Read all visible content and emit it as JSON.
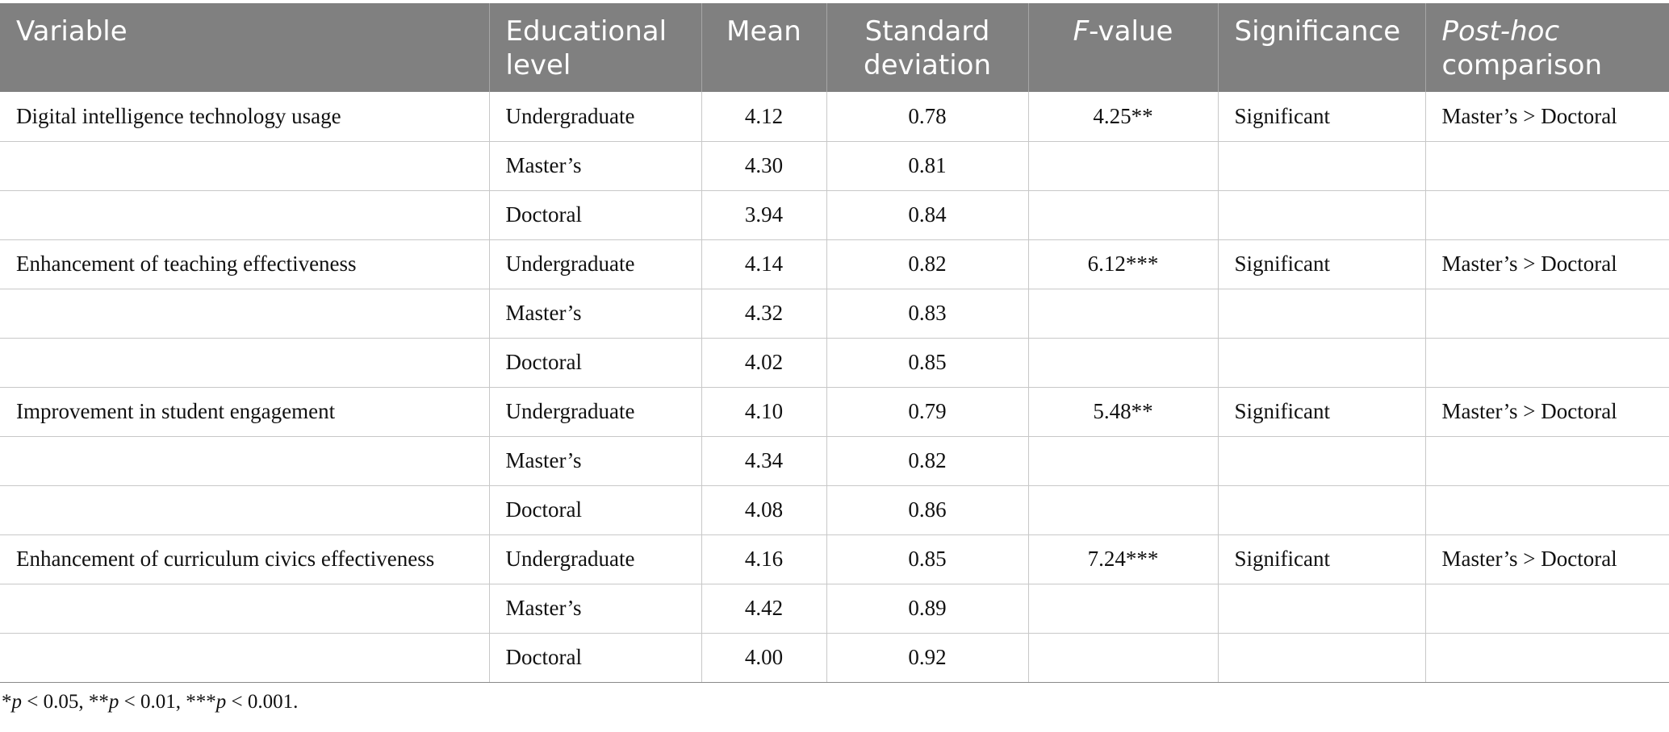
{
  "table": {
    "headers": {
      "variable": "Variable",
      "educational_level": "Educational level",
      "mean": "Mean",
      "standard_deviation": "Standard deviation",
      "f_value_italic": "F",
      "f_value_rest": "-value",
      "significance": "Significance",
      "post_hoc_italic": "Post-hoc",
      "post_hoc_rest": "comparison"
    },
    "rows": [
      {
        "variable": "Digital intelligence technology usage",
        "level": "Undergraduate",
        "mean": "4.12",
        "sd": "0.78",
        "f": "4.25**",
        "significance": "Significant",
        "posthoc": "Master’s > Doctoral"
      },
      {
        "variable": "",
        "level": "Master’s",
        "mean": "4.30",
        "sd": "0.81",
        "f": "",
        "significance": "",
        "posthoc": ""
      },
      {
        "variable": "",
        "level": "Doctoral",
        "mean": "3.94",
        "sd": "0.84",
        "f": "",
        "significance": "",
        "posthoc": ""
      },
      {
        "variable": "Enhancement of teaching effectiveness",
        "level": "Undergraduate",
        "mean": "4.14",
        "sd": "0.82",
        "f": "6.12***",
        "significance": "Significant",
        "posthoc": "Master’s > Doctoral"
      },
      {
        "variable": "",
        "level": "Master’s",
        "mean": "4.32",
        "sd": "0.83",
        "f": "",
        "significance": "",
        "posthoc": ""
      },
      {
        "variable": "",
        "level": "Doctoral",
        "mean": "4.02",
        "sd": "0.85",
        "f": "",
        "significance": "",
        "posthoc": ""
      },
      {
        "variable": "Improvement in student engagement",
        "level": "Undergraduate",
        "mean": "4.10",
        "sd": "0.79",
        "f": "5.48**",
        "significance": "Significant",
        "posthoc": "Master’s > Doctoral"
      },
      {
        "variable": "",
        "level": "Master’s",
        "mean": "4.34",
        "sd": "0.82",
        "f": "",
        "significance": "",
        "posthoc": ""
      },
      {
        "variable": "",
        "level": "Doctoral",
        "mean": "4.08",
        "sd": "0.86",
        "f": "",
        "significance": "",
        "posthoc": ""
      },
      {
        "variable": "Enhancement of curriculum civics effectiveness",
        "level": "Undergraduate",
        "mean": "4.16",
        "sd": "0.85",
        "f": "7.24***",
        "significance": "Significant",
        "posthoc": "Master’s > Doctoral"
      },
      {
        "variable": "",
        "level": "Master’s",
        "mean": "4.42",
        "sd": "0.89",
        "f": "",
        "significance": "",
        "posthoc": ""
      },
      {
        "variable": "",
        "level": "Doctoral",
        "mean": "4.00",
        "sd": "0.92",
        "f": "",
        "significance": "",
        "posthoc": ""
      }
    ]
  },
  "footnote": {
    "parts": [
      "*",
      "p",
      " < 0.05, **",
      "p",
      " < 0.01, ***",
      "p",
      " < 0.001."
    ]
  }
}
